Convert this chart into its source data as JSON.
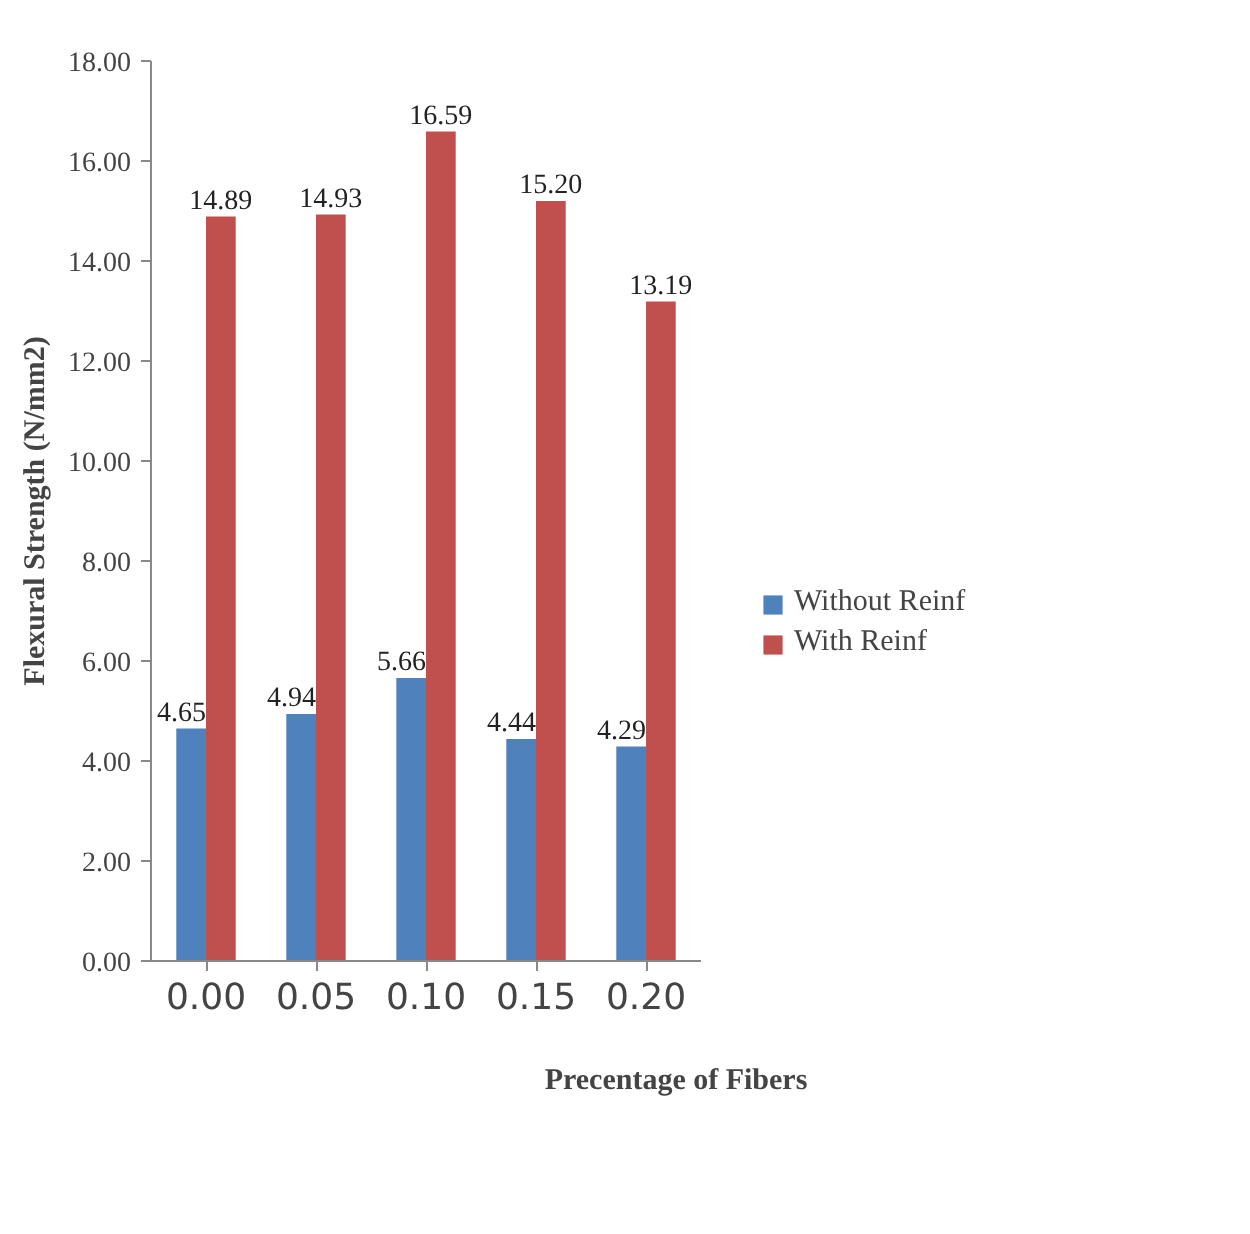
{
  "chart_data": {
    "type": "bar",
    "xlabel": "Precentage of Fibers",
    "ylabel": "Flexural Strength (N/mm2)",
    "categories": [
      "0.00",
      "0.05",
      "0.10",
      "0.15",
      "0.20"
    ],
    "series": [
      {
        "name": "Without Reinf",
        "color": "#4f81bd",
        "values": [
          4.65,
          4.94,
          5.66,
          4.44,
          4.29
        ],
        "value_labels": [
          "4.65",
          "4.94",
          "5.66",
          "4.44",
          "4.29"
        ]
      },
      {
        "name": "With Reinf",
        "color": "#c0504d",
        "values": [
          14.89,
          14.93,
          16.59,
          15.2,
          13.19
        ],
        "value_labels": [
          "14.89",
          "14.93",
          "16.59",
          "15.20",
          "13.19"
        ]
      }
    ],
    "ylim": [
      0,
      18
    ],
    "yticks": [
      {
        "value": 0,
        "label": "0.00"
      },
      {
        "value": 2,
        "label": "2.00"
      },
      {
        "value": 4,
        "label": "4.00"
      },
      {
        "value": 6,
        "label": "6.00"
      },
      {
        "value": 8,
        "label": "8.00"
      },
      {
        "value": 10,
        "label": "10.00"
      },
      {
        "value": 12,
        "label": "12.00"
      },
      {
        "value": 14,
        "label": "14.00"
      },
      {
        "value": 16,
        "label": "16.00"
      },
      {
        "value": 18,
        "label": "18.00"
      }
    ],
    "data_labels": true,
    "grid": false,
    "legend": "right"
  }
}
